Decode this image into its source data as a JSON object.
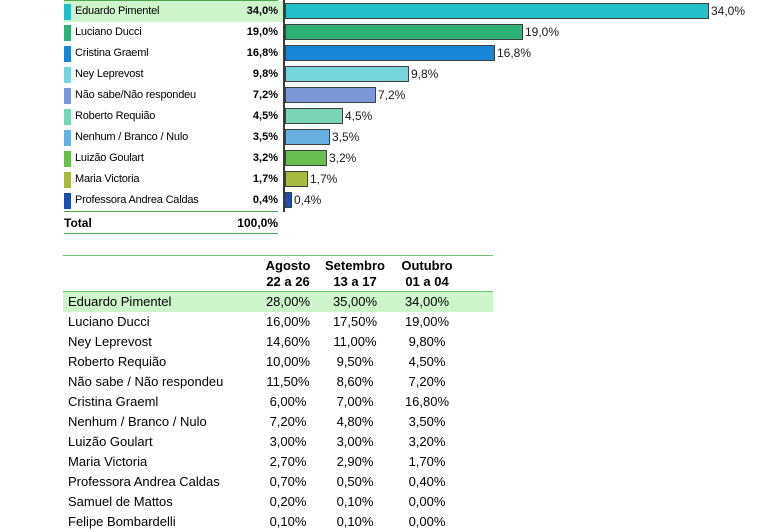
{
  "colors": {
    "highlight_bg": "#CDF4CA",
    "legend_rule": "#4DA64D",
    "table_rule": "#6FC06F",
    "axis_line": "#3B3B3B",
    "bar_border": "#3F3F3F"
  },
  "chart_data": {
    "type": "bar",
    "orientation": "horizontal",
    "title": "",
    "xlabel": "",
    "ylabel": "",
    "xlim": [
      0,
      39
    ],
    "grid": false,
    "legend_position": "left-table",
    "categories": [
      "Eduardo Pimentel",
      "Luciano Ducci",
      "Cristina Graeml",
      "Ney Leprevost",
      "Não sabe/Não respondeu",
      "Roberto Requião",
      "Nenhum / Branco / Nulo",
      "Luizão Goulart",
      "Maria Victoria",
      "Professora Andrea Caldas"
    ],
    "values": [
      34.0,
      19.0,
      16.8,
      9.8,
      7.2,
      4.5,
      3.5,
      3.2,
      1.7,
      0.4
    ],
    "labels": [
      "34,0%",
      "19,0%",
      "16,8%",
      "9,8%",
      "7,2%",
      "4,5%",
      "3,5%",
      "3,2%",
      "1,7%",
      "0,4%"
    ],
    "bar_colors": [
      "#22BFC8",
      "#2EB377",
      "#1886D6",
      "#76D5DA",
      "#7B97D8",
      "#7BD3B8",
      "#66AFE0",
      "#68BE4E",
      "#A8B93F",
      "#1D4FB0"
    ],
    "highlighted_index": 0,
    "total": {
      "label": "Total",
      "value": "100,0%"
    }
  },
  "table": {
    "header": [
      {
        "line1": "Agosto",
        "line2": "22 a 26"
      },
      {
        "line1": "Setembro",
        "line2": "13 a 17"
      },
      {
        "line1": "Outubro",
        "line2": "01 a 04"
      }
    ],
    "rows": [
      {
        "name": "Eduardo Pimentel",
        "values": [
          "28,00%",
          "35,00%",
          "34,00%"
        ],
        "highlight": true
      },
      {
        "name": "Luciano Ducci",
        "values": [
          "16,00%",
          "17,50%",
          "19,00%"
        ],
        "highlight": false
      },
      {
        "name": "Ney Leprevost",
        "values": [
          "14,60%",
          "11,00%",
          "9,80%"
        ],
        "highlight": false
      },
      {
        "name": "Roberto Requião",
        "values": [
          "10,00%",
          "9,50%",
          "4,50%"
        ],
        "highlight": false
      },
      {
        "name": "Não sabe / Não respondeu",
        "values": [
          "11,50%",
          "8,60%",
          "7,20%"
        ],
        "highlight": false
      },
      {
        "name": "Cristina Graeml",
        "values": [
          "6,00%",
          "7,00%",
          "16,80%"
        ],
        "highlight": false
      },
      {
        "name": "Nenhum / Branco / Nulo",
        "values": [
          "7,20%",
          "4,80%",
          "3,50%"
        ],
        "highlight": false
      },
      {
        "name": "Luizão Goulart",
        "values": [
          "3,00%",
          "3,00%",
          "3,20%"
        ],
        "highlight": false
      },
      {
        "name": "Maria Victoria",
        "values": [
          "2,70%",
          "2,90%",
          "1,70%"
        ],
        "highlight": false
      },
      {
        "name": "Professora Andrea Caldas",
        "values": [
          "0,70%",
          "0,50%",
          "0,40%"
        ],
        "highlight": false
      },
      {
        "name": "Samuel de Mattos",
        "values": [
          "0,20%",
          "0,10%",
          "0,00%"
        ],
        "highlight": false
      },
      {
        "name": "Felipe Bombardelli",
        "values": [
          "0,10%",
          "0,10%",
          "0,00%"
        ],
        "highlight": false
      }
    ]
  }
}
